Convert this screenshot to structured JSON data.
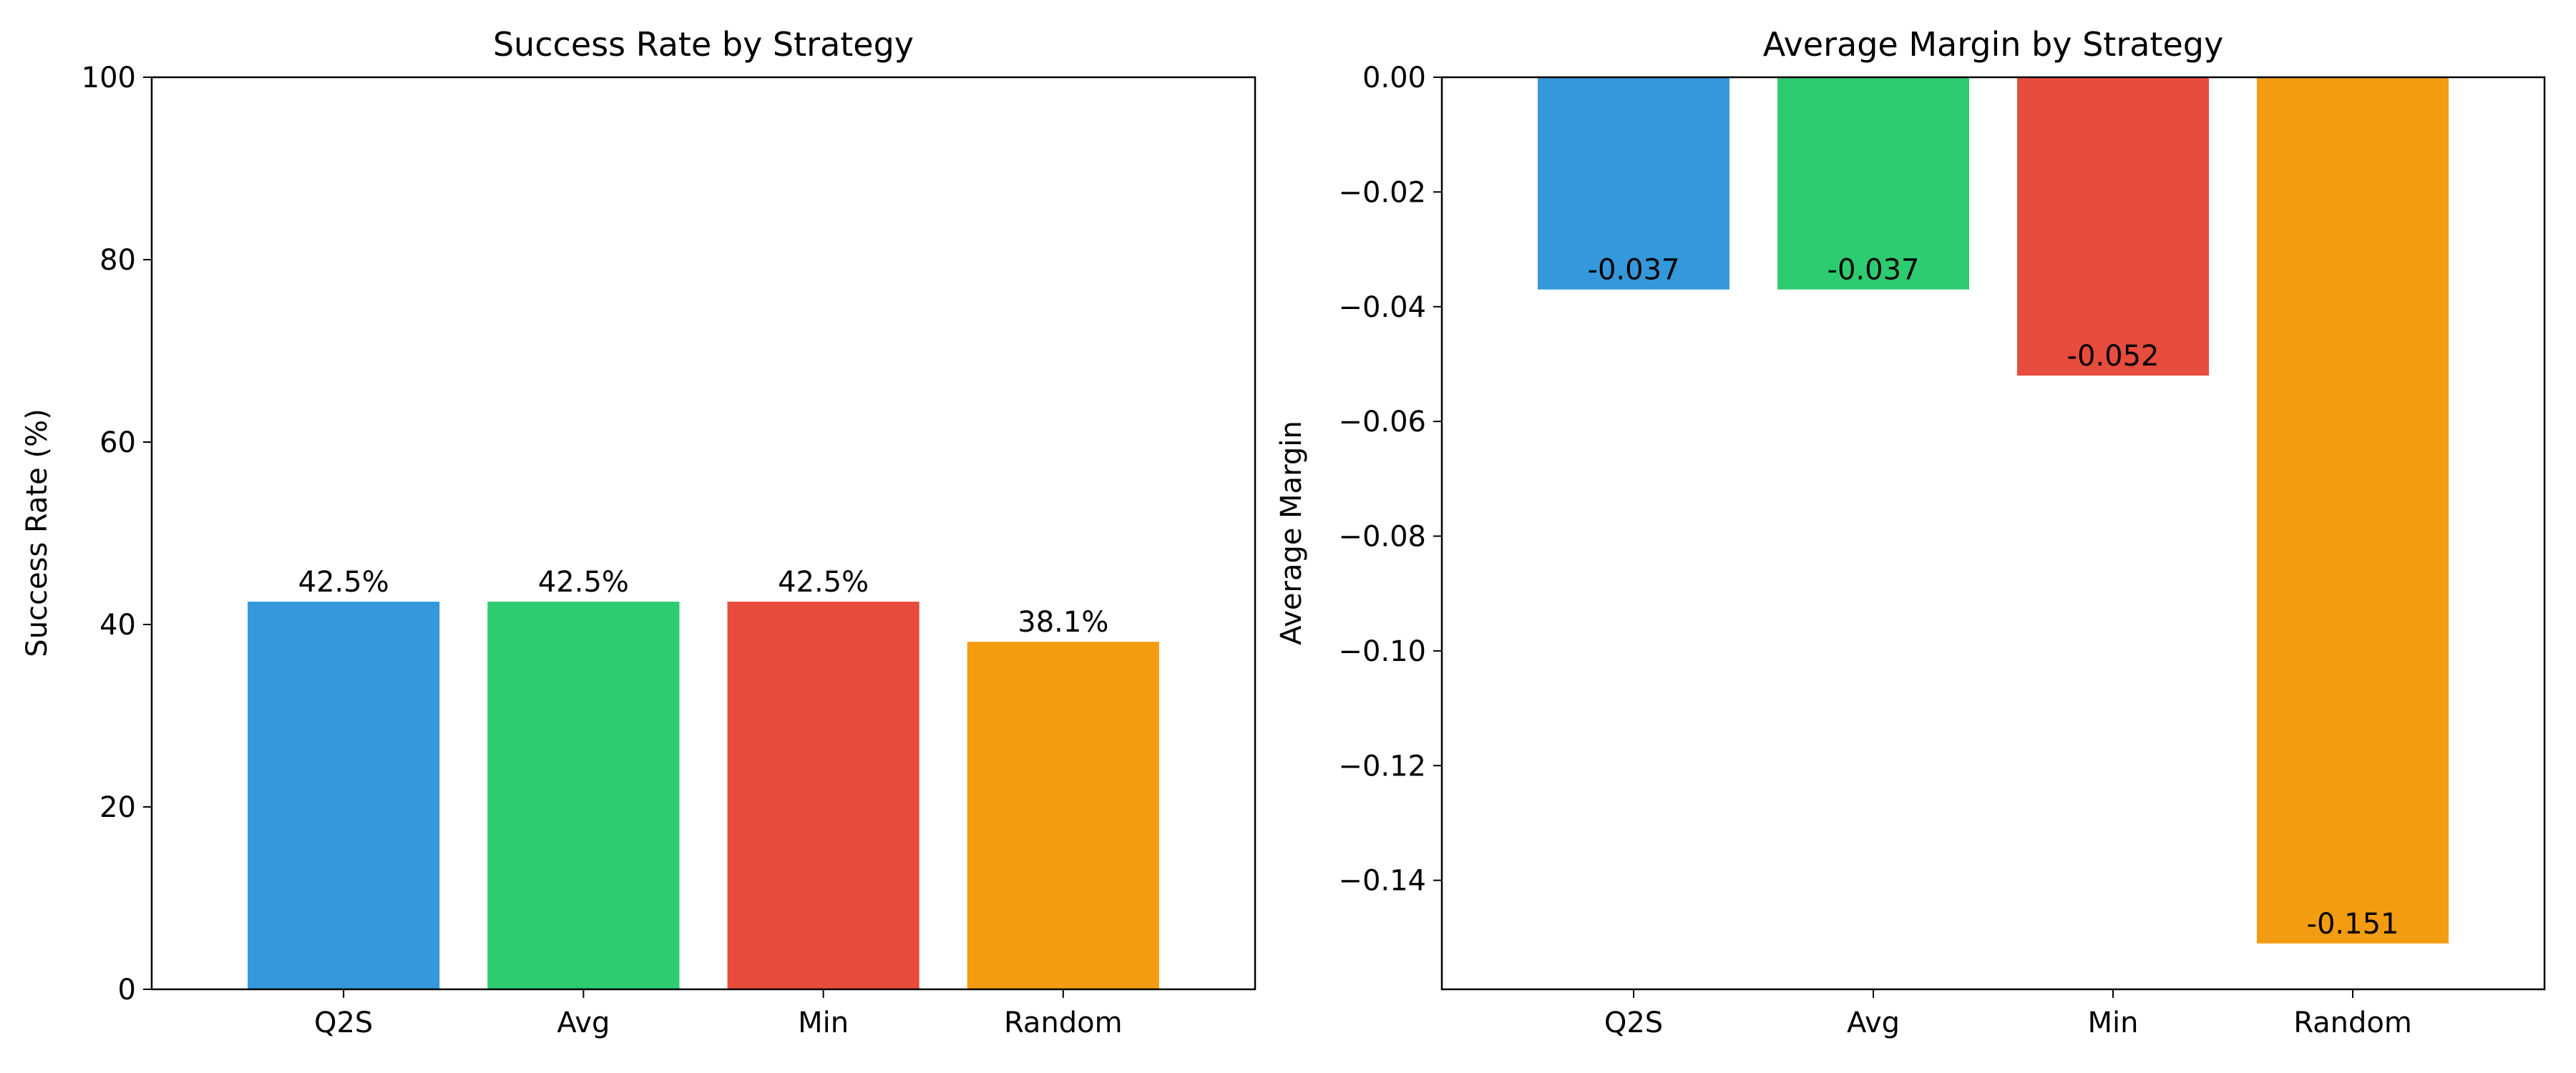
{
  "chart_data": [
    {
      "type": "bar",
      "title": "Success Rate by Strategy",
      "xlabel": "",
      "ylabel": "Success Rate (%)",
      "categories": [
        "Q2S",
        "Avg",
        "Min",
        "Random"
      ],
      "values": [
        42.5,
        42.5,
        42.5,
        38.1
      ],
      "value_labels": [
        "42.5%",
        "42.5%",
        "42.5%",
        "38.1%"
      ],
      "colors": [
        "#3498db",
        "#2ecc71",
        "#e74c3c",
        "#f39c12"
      ],
      "ylim": [
        0,
        100
      ],
      "yticks": [
        0,
        20,
        40,
        60,
        80,
        100
      ],
      "ytick_labels": [
        "0",
        "20",
        "40",
        "60",
        "80",
        "100"
      ],
      "grid": false
    },
    {
      "type": "bar",
      "title": "Average Margin by Strategy",
      "xlabel": "",
      "ylabel": "Average Margin",
      "categories": [
        "Q2S",
        "Avg",
        "Min",
        "Random"
      ],
      "values": [
        -0.037,
        -0.037,
        -0.052,
        -0.151
      ],
      "value_labels": [
        "-0.037",
        "-0.037",
        "-0.052",
        "-0.151"
      ],
      "colors": [
        "#3498db",
        "#2ecc71",
        "#e74c3c",
        "#f39c12"
      ],
      "ylim": [
        -0.159,
        0.0
      ],
      "yticks": [
        0.0,
        -0.02,
        -0.04,
        -0.06,
        -0.08,
        -0.1,
        -0.12,
        -0.14
      ],
      "ytick_labels": [
        "0.00",
        "−0.02",
        "−0.04",
        "−0.06",
        "−0.08",
        "−0.10",
        "−0.12",
        "−0.14"
      ],
      "grid": false
    }
  ]
}
